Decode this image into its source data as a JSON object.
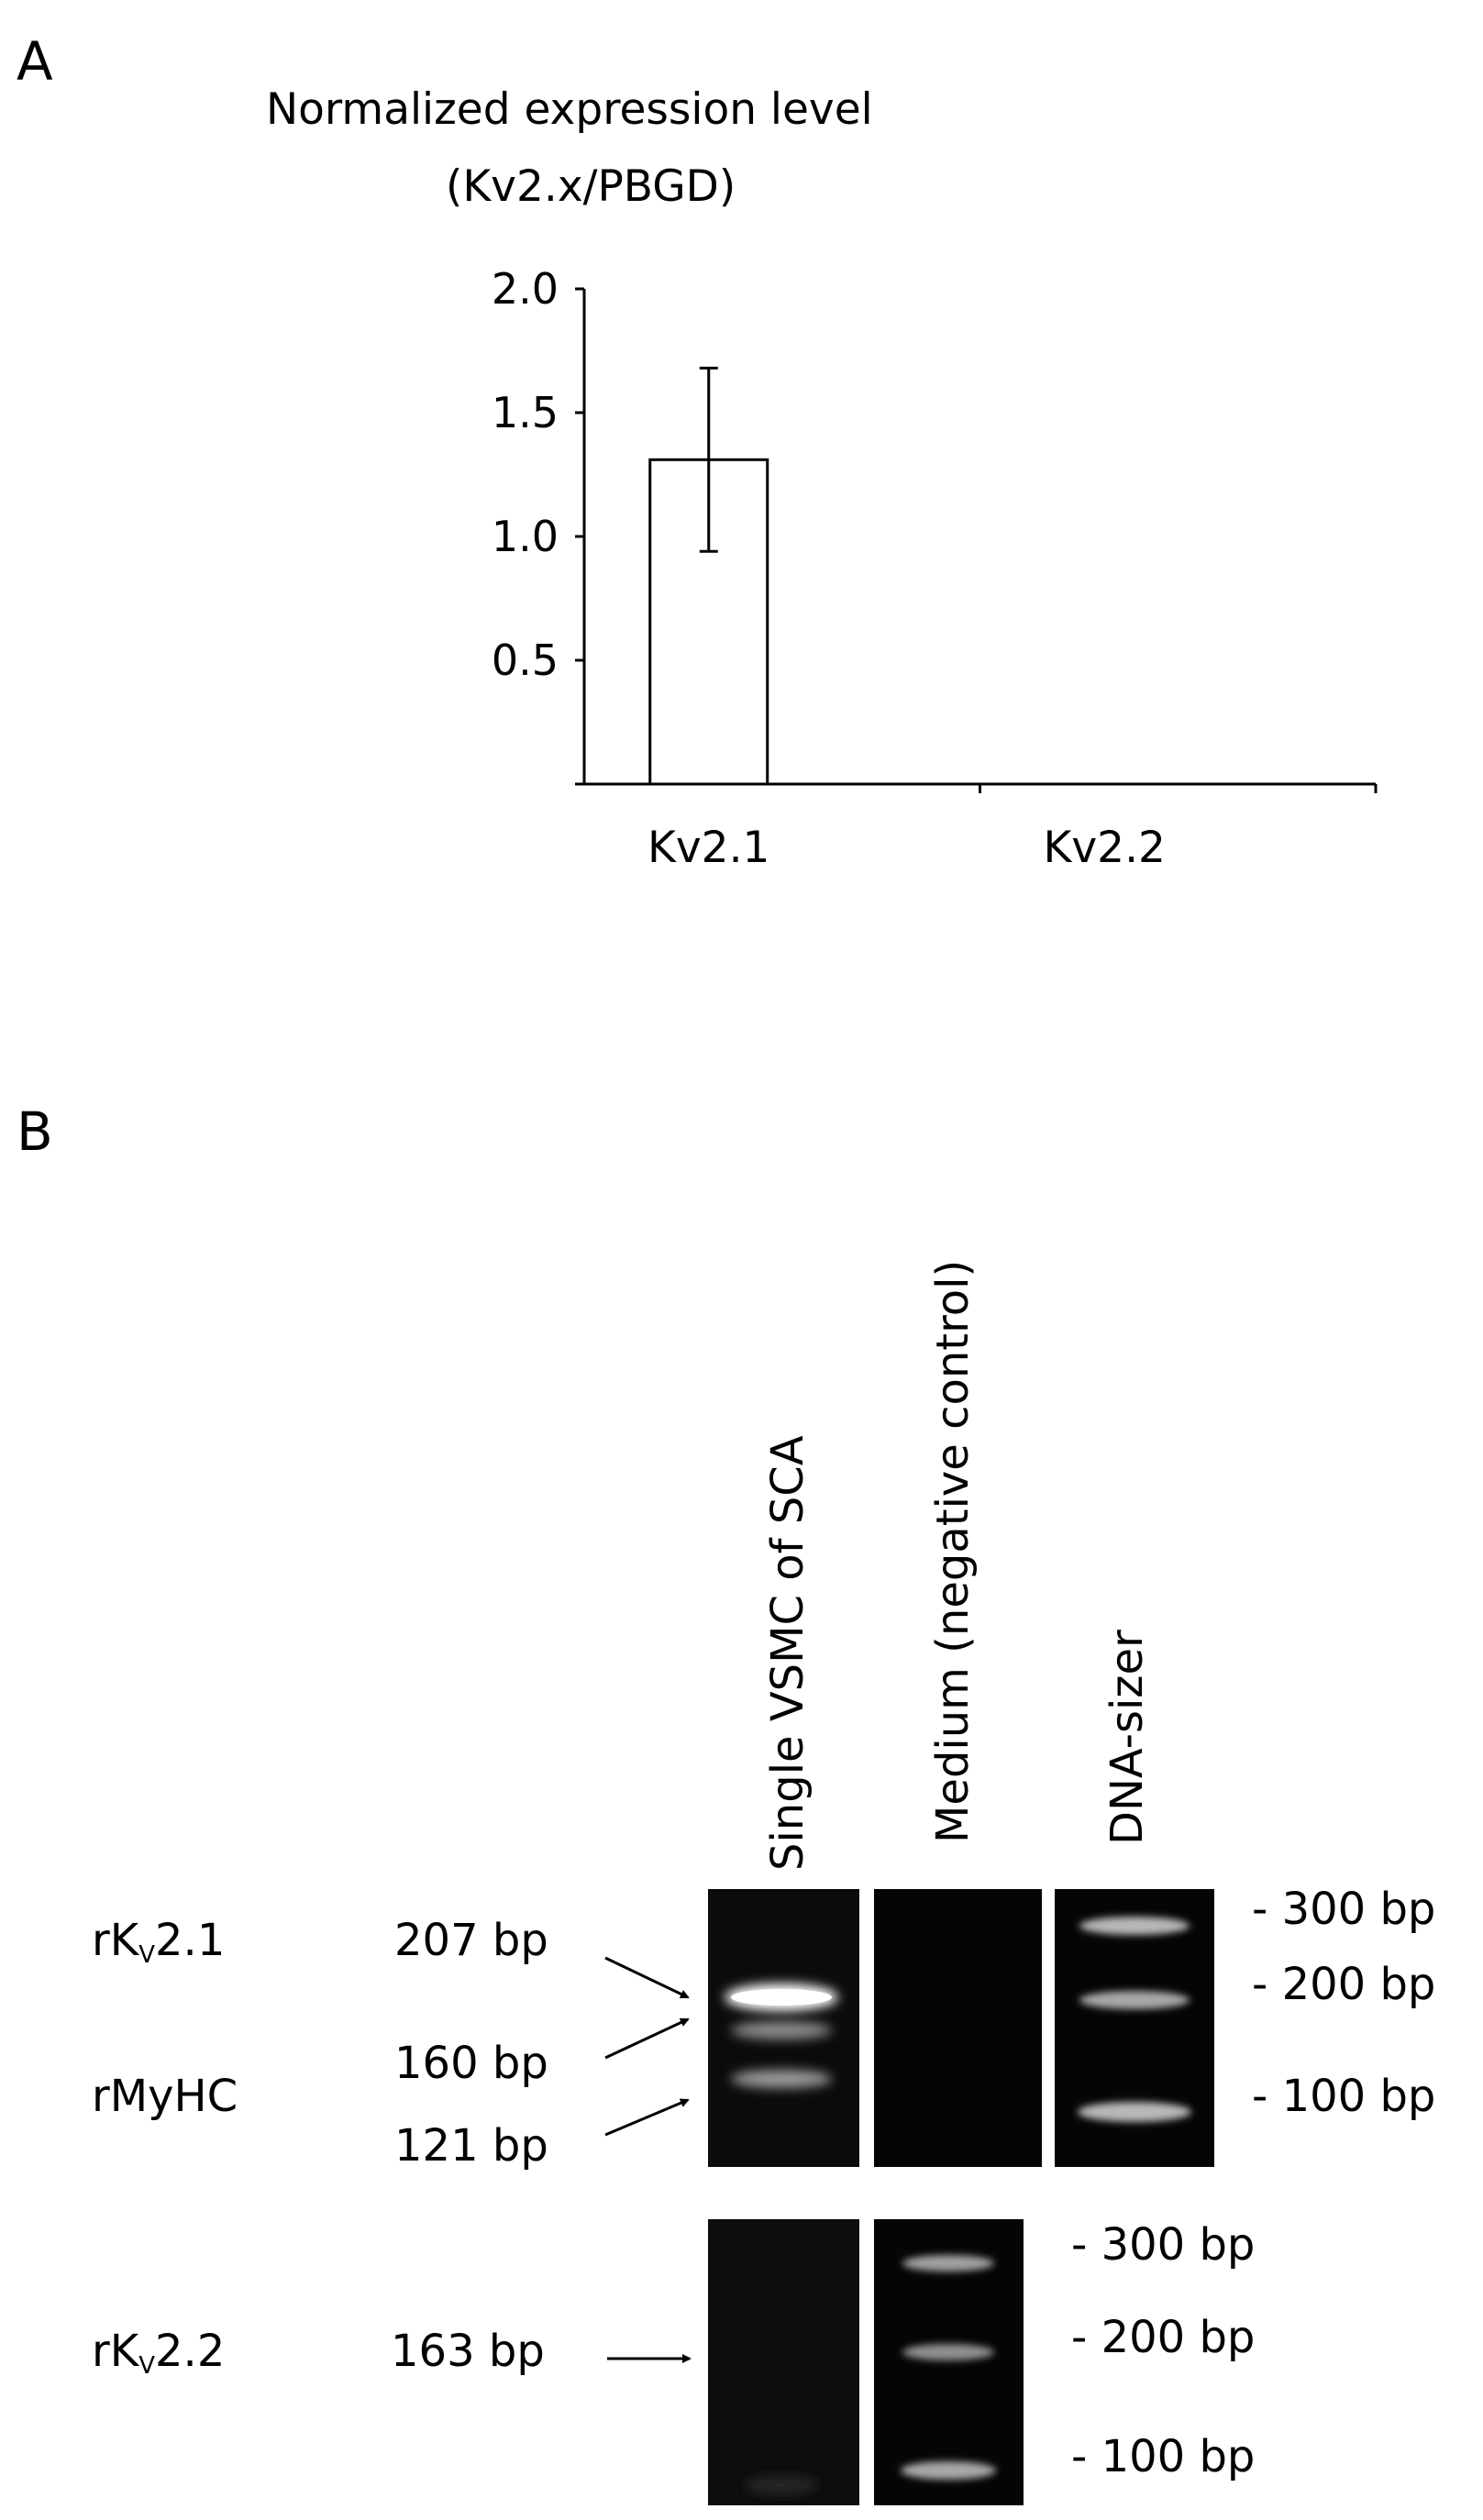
{
  "panel_a_label": "A",
  "panel_b_label": "B",
  "chart_data": {
    "type": "bar",
    "title": "Normalized expression level",
    "subtitle": "(Kv2.x/PBGD)",
    "categories": [
      "Kv2.1",
      "Kv2.2"
    ],
    "values": [
      1.31,
      0.0
    ],
    "error": [
      0.37,
      0.0
    ],
    "ylim": [
      0,
      2.0
    ],
    "yticks": [
      "0.5",
      "1.0",
      "1.5",
      "2.0"
    ],
    "ytick_values": [
      0.5,
      1.0,
      1.5,
      2.0
    ],
    "xlabel": "",
    "ylabel": "",
    "grid": false
  },
  "gel": {
    "lane_labels": [
      "Single VSMC of SCA",
      "Medium (negative control)",
      "DNA-sizer"
    ],
    "top": {
      "gene_labels": [
        {
          "main": "rK",
          "sub": "V",
          "suffix": "2.1"
        },
        {
          "main": "rMyHC",
          "sub": "",
          "suffix": ""
        }
      ],
      "band_sizes": [
        "207 bp",
        "160 bp",
        "121 bp"
      ],
      "markers": [
        "- 300 bp",
        "- 200 bp",
        "- 100 bp"
      ]
    },
    "bottom": {
      "gene_label": {
        "main": "rK",
        "sub": "V",
        "suffix": "2.2"
      },
      "band_size": "163 bp",
      "markers": [
        "- 300 bp",
        "- 200 bp",
        "- 100 bp"
      ]
    }
  }
}
